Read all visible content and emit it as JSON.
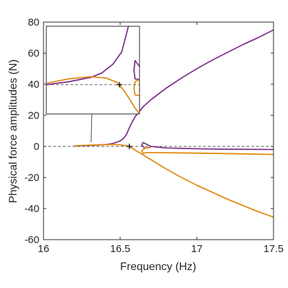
{
  "chart_data": {
    "type": "line",
    "title": "",
    "xlabel": "Frequency (Hz)",
    "ylabel": "Physical force amplitudes (N)",
    "xlim": [
      16,
      17.5
    ],
    "ylim": [
      -60,
      80
    ],
    "xticks": [
      "16",
      "16.5",
      "17",
      "17.5"
    ],
    "yticks": [
      "-60",
      "-40",
      "-20",
      "0",
      "20",
      "40",
      "60",
      "80"
    ],
    "grid": false,
    "legend": "none",
    "colors": {
      "purple": "#7E2F8E",
      "orange": "#E08A0E",
      "reference": "#555555",
      "axis": "#262626"
    },
    "series": [
      {
        "color": "purple",
        "points": [
          [
            16.2,
            0.3
          ],
          [
            16.3,
            0.6
          ],
          [
            16.4,
            1.1
          ],
          [
            16.45,
            1.8
          ],
          [
            16.5,
            3.5
          ],
          [
            16.52,
            5.0
          ],
          [
            16.54,
            7.5
          ],
          [
            16.56,
            12
          ],
          [
            16.58,
            16
          ],
          [
            16.6,
            19.5
          ],
          [
            16.65,
            25.5
          ],
          [
            16.7,
            30
          ],
          [
            16.8,
            37.5
          ],
          [
            16.9,
            44
          ],
          [
            17.0,
            50
          ],
          [
            17.1,
            55.5
          ],
          [
            17.2,
            60.5
          ],
          [
            17.3,
            65.5
          ],
          [
            17.4,
            70
          ],
          [
            17.5,
            75
          ]
        ]
      },
      {
        "color": "orange",
        "points": [
          [
            16.2,
            0.4
          ],
          [
            16.3,
            0.8
          ],
          [
            16.4,
            1.2
          ],
          [
            16.48,
            1.2
          ],
          [
            16.53,
            0.6
          ],
          [
            16.56,
            0
          ],
          [
            16.6,
            -2.5
          ],
          [
            16.7,
            -8.5
          ],
          [
            16.8,
            -14.5
          ],
          [
            16.9,
            -20
          ],
          [
            17.0,
            -25
          ],
          [
            17.1,
            -29.5
          ],
          [
            17.2,
            -34
          ],
          [
            17.3,
            -38
          ],
          [
            17.4,
            -42
          ],
          [
            17.5,
            -45.5
          ]
        ]
      },
      {
        "color": "purple",
        "points": [
          [
            16.7,
            -0.5
          ],
          [
            16.66,
            -1.2
          ],
          [
            16.64,
            1
          ],
          [
            16.65,
            2.5
          ],
          [
            16.67,
            1.5
          ],
          [
            16.7,
            0
          ],
          [
            16.8,
            -1
          ],
          [
            17.0,
            -1.5
          ],
          [
            17.2,
            -1.8
          ],
          [
            17.5,
            -2
          ]
        ]
      },
      {
        "color": "orange",
        "points": [
          [
            16.7,
            -0.5
          ],
          [
            16.66,
            -1.2
          ],
          [
            16.64,
            -3
          ],
          [
            16.65,
            -4.5
          ],
          [
            16.67,
            -4
          ],
          [
            16.75,
            -4
          ],
          [
            17.0,
            -4.3
          ],
          [
            17.25,
            -4.7
          ],
          [
            17.5,
            -5.2
          ]
        ]
      }
    ],
    "reference_line": {
      "y": 0,
      "style": "dashed"
    },
    "markers": [
      {
        "x": 16.56,
        "y": 0,
        "symbol": "+"
      }
    ],
    "inset": {
      "zoom_target": {
        "x": 16.31,
        "y": 1
      },
      "xlim": [
        16.2,
        16.62
      ],
      "ylim": [
        -4,
        8
      ],
      "reference_y": 0,
      "marker": {
        "x": 16.53,
        "y": 0
      },
      "series": [
        {
          "color": "purple",
          "points": [
            [
              16.2,
              0
            ],
            [
              16.3,
              0.4
            ],
            [
              16.4,
              1
            ],
            [
              16.45,
              1.6
            ],
            [
              16.5,
              2.8
            ],
            [
              16.54,
              4.5
            ],
            [
              16.57,
              8
            ]
          ]
        },
        {
          "color": "orange",
          "points": [
            [
              16.2,
              0.2
            ],
            [
              16.3,
              0.8
            ],
            [
              16.4,
              1.1
            ],
            [
              16.47,
              0.9
            ],
            [
              16.52,
              0.3
            ],
            [
              16.55,
              -0.8
            ],
            [
              16.58,
              -2.2
            ],
            [
              16.6,
              -3.2
            ],
            [
              16.62,
              -4
            ]
          ]
        },
        {
          "color": "purple",
          "points": [
            [
              16.62,
              2.5
            ],
            [
              16.6,
              3.3
            ],
            [
              16.595,
              2
            ],
            [
              16.6,
              0.8
            ],
            [
              16.62,
              0.7
            ]
          ]
        },
        {
          "color": "orange",
          "points": [
            [
              16.62,
              -1.5
            ],
            [
              16.6,
              -1.4
            ],
            [
              16.595,
              -0.5
            ],
            [
              16.6,
              0.4
            ],
            [
              16.62,
              0.7
            ]
          ]
        }
      ]
    }
  }
}
